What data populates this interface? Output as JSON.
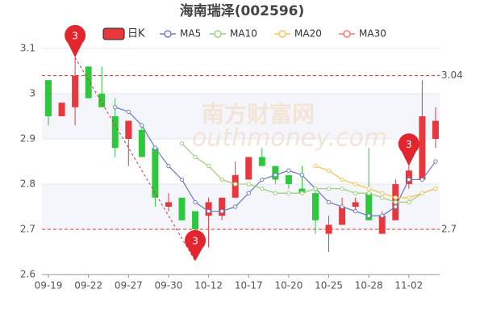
{
  "chart_data": {
    "type": "candlestick",
    "title": "海南瑞泽(002596)",
    "watermark": [
      "南方财富网",
      "outhmoney.com"
    ],
    "categories": [
      "09-19",
      null,
      null,
      "09-22",
      null,
      null,
      "09-27",
      null,
      null,
      "09-30",
      null,
      null,
      "10-12",
      null,
      null,
      "10-17",
      null,
      null,
      "10-20",
      null,
      null,
      "10-25",
      null,
      null,
      "10-28",
      null,
      null,
      "11-02",
      null,
      null
    ],
    "series": [
      {
        "name": "日K",
        "up_color": "#e8383d",
        "down_color": "#2dc83c",
        "open": [
          3.03,
          2.95,
          2.97,
          3.06,
          3.0,
          2.95,
          2.9,
          2.92,
          2.88,
          2.75,
          2.77,
          2.74,
          2.73,
          2.73,
          2.77,
          2.81,
          2.86,
          2.84,
          2.82,
          2.79,
          2.78,
          2.69,
          2.71,
          2.75,
          2.78,
          2.69,
          2.72,
          2.8,
          2.81,
          2.9
        ],
        "high": [
          3.03,
          2.98,
          3.08,
          3.06,
          3.06,
          2.99,
          2.94,
          2.93,
          2.88,
          2.78,
          2.77,
          2.74,
          2.77,
          2.77,
          2.85,
          2.86,
          2.88,
          2.84,
          2.82,
          2.84,
          2.79,
          2.73,
          2.77,
          2.77,
          2.88,
          2.74,
          2.81,
          2.84,
          3.03,
          2.97
        ],
        "low": [
          2.93,
          2.95,
          2.93,
          2.99,
          2.97,
          2.86,
          2.84,
          2.86,
          2.75,
          2.74,
          2.72,
          2.63,
          2.66,
          2.72,
          2.77,
          2.81,
          2.84,
          2.8,
          2.79,
          2.78,
          2.69,
          2.65,
          2.71,
          2.74,
          2.72,
          2.69,
          2.72,
          2.79,
          2.81,
          2.88
        ],
        "close": [
          2.95,
          2.98,
          3.04,
          2.99,
          2.97,
          2.88,
          2.94,
          2.86,
          2.77,
          2.76,
          2.72,
          2.7,
          2.76,
          2.77,
          2.82,
          2.86,
          2.84,
          2.81,
          2.8,
          2.78,
          2.72,
          2.71,
          2.75,
          2.76,
          2.72,
          2.73,
          2.8,
          2.83,
          2.95,
          2.94
        ]
      }
    ],
    "lines": [
      {
        "name": "MA5",
        "color": "#7182c0",
        "values": [
          null,
          null,
          null,
          null,
          null,
          2.97,
          2.96,
          2.93,
          2.88,
          2.84,
          2.81,
          2.76,
          2.74,
          2.74,
          2.75,
          2.78,
          2.81,
          2.82,
          2.83,
          2.82,
          2.79,
          2.76,
          2.75,
          2.74,
          2.73,
          2.73,
          2.75,
          2.81,
          2.81,
          2.85
        ]
      },
      {
        "name": "MA10",
        "color": "#9fd07f",
        "values": [
          null,
          null,
          null,
          null,
          null,
          null,
          null,
          null,
          null,
          null,
          2.89,
          2.86,
          2.84,
          2.81,
          2.8,
          2.8,
          2.79,
          2.78,
          2.78,
          2.78,
          2.79,
          2.79,
          2.79,
          2.78,
          2.78,
          2.77,
          2.76,
          2.76,
          2.78,
          2.79
        ]
      },
      {
        "name": "MA20",
        "color": "#f5c75a",
        "values": [
          null,
          null,
          null,
          null,
          null,
          null,
          null,
          null,
          null,
          null,
          null,
          null,
          null,
          null,
          null,
          null,
          null,
          null,
          null,
          null,
          2.84,
          2.83,
          2.81,
          2.8,
          2.79,
          2.78,
          2.77,
          2.77,
          2.78,
          2.79
        ]
      },
      {
        "name": "MA30",
        "color": "#ef7b7b",
        "values": [
          null,
          null,
          null,
          null,
          null,
          null,
          null,
          null,
          null,
          null,
          null,
          null,
          null,
          null,
          null,
          null,
          null,
          null,
          null,
          null,
          null,
          null,
          null,
          null,
          null,
          null,
          null,
          null,
          null,
          null
        ]
      }
    ],
    "ref_lines": [
      3.04,
      2.7
    ],
    "markers": [
      {
        "index": 2,
        "label": 3
      },
      {
        "index": 11,
        "label": 3
      },
      {
        "index": 27,
        "label": 3
      }
    ],
    "ylim": [
      2.6,
      3.1
    ],
    "yticks": [
      2.6,
      2.7,
      2.8,
      2.9,
      3,
      3.1
    ]
  }
}
